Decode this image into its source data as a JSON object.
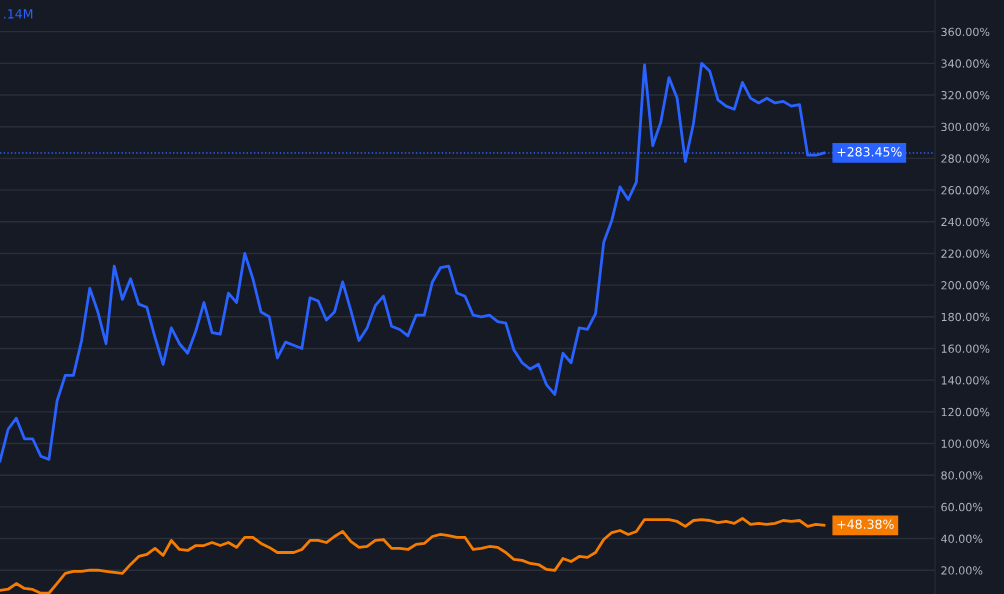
{
  "chart_data": {
    "type": "line",
    "categories": [
      null,
      null,
      null,
      null,
      null,
      null,
      null,
      null,
      null,
      null,
      null,
      null,
      null,
      null,
      null,
      null,
      null,
      null,
      null,
      null,
      null,
      null,
      null,
      null,
      null,
      null,
      null,
      null,
      null,
      null,
      null,
      null,
      null,
      null,
      null,
      null,
      null,
      null,
      null,
      null,
      null,
      null,
      null,
      null,
      null,
      null,
      null,
      null,
      null,
      null,
      null,
      null,
      null,
      null,
      null,
      null,
      null,
      null,
      null,
      null,
      null,
      null,
      null,
      null,
      null,
      null,
      null,
      null,
      null,
      null,
      null,
      null,
      null,
      null,
      null,
      null,
      null,
      null,
      null,
      null,
      null,
      null,
      null,
      null,
      null,
      null,
      null,
      null,
      null,
      null,
      null,
      null,
      null,
      null,
      null,
      null,
      null,
      null,
      null,
      null,
      null,
      null
    ],
    "series": [
      {
        "color": "#2962ff",
        "values": [
          89,
          109,
          116,
          103,
          103,
          92,
          90,
          127,
          143,
          143,
          165,
          198,
          183,
          163,
          212,
          191,
          204,
          188,
          186,
          167,
          150,
          173,
          163,
          157,
          171,
          189,
          170,
          169,
          195,
          189,
          220,
          204,
          183,
          180,
          154,
          164,
          162,
          160,
          192,
          190,
          178,
          183,
          202,
          184,
          165,
          173,
          187,
          193,
          174,
          172,
          168,
          181,
          181,
          202,
          211,
          212,
          195,
          193,
          181,
          180,
          181,
          177,
          176,
          159,
          151,
          147,
          150,
          137,
          131,
          157,
          151,
          173,
          172,
          182,
          227,
          241,
          262,
          254,
          265,
          339,
          288,
          303,
          331,
          318,
          278,
          302,
          340,
          335,
          317,
          313,
          311,
          328,
          318,
          315,
          318,
          315,
          316,
          313,
          314,
          282,
          282,
          283.45
        ],
        "value_labels": [
          null,
          null,
          null,
          null,
          null,
          null,
          null,
          null,
          null,
          null,
          null,
          null,
          null,
          null,
          null,
          null,
          null,
          null,
          null,
          null,
          null,
          null,
          null,
          null,
          null,
          null,
          null,
          null,
          null,
          null,
          null,
          null,
          null,
          null,
          null,
          null,
          null,
          null,
          null,
          null,
          null,
          null,
          null,
          null,
          null,
          null,
          null,
          null,
          null,
          null,
          null,
          null,
          null,
          null,
          null,
          null,
          null,
          null,
          null,
          null,
          null,
          null,
          null,
          null,
          null,
          null,
          null,
          null,
          null,
          null,
          null,
          null,
          null,
          null,
          null,
          null,
          null,
          null,
          null,
          null,
          null,
          null,
          null,
          null,
          null,
          null,
          null,
          null,
          null,
          null,
          null,
          null,
          null,
          null,
          null,
          null,
          null,
          null,
          null,
          null,
          null,
          "+283.45%"
        ]
      },
      {
        "color": "#f57c00",
        "values": [
          7.3,
          8,
          11.6,
          8.5,
          7.9,
          5.5,
          5.5,
          11.7,
          18,
          19.3,
          19.3,
          20,
          20,
          19.3,
          18.6,
          18,
          23.7,
          28.7,
          30,
          33.8,
          29.4,
          38.8,
          33.1,
          32.5,
          35.6,
          35.6,
          37.5,
          35.6,
          37.5,
          34.4,
          40.7,
          40.7,
          36.9,
          34.4,
          31.2,
          31.2,
          31.2,
          33.1,
          38.8,
          38.8,
          37.5,
          41.3,
          44.5,
          38.2,
          34.4,
          35,
          38.8,
          39.4,
          33.8,
          33.8,
          33.1,
          36.3,
          36.9,
          41.3,
          42.6,
          41.9,
          40.7,
          40.7,
          33.1,
          33.8,
          35,
          34.4,
          31.2,
          26.8,
          26.2,
          24.3,
          23.6,
          20.5,
          19.9,
          27.4,
          25.5,
          28.7,
          28.1,
          31.2,
          39.4,
          43.8,
          45.1,
          42.6,
          44.5,
          52,
          52,
          52,
          52,
          50.8,
          47.7,
          51.4,
          52,
          51.4,
          50.1,
          50.8,
          49.6,
          52.7,
          48.9,
          49.6,
          48.9,
          49.6,
          51.4,
          50.8,
          51.4,
          47.7,
          48.9,
          48.38
        ],
        "value_labels": [
          null,
          null,
          null,
          null,
          null,
          null,
          null,
          null,
          null,
          null,
          null,
          null,
          null,
          null,
          null,
          null,
          null,
          null,
          null,
          null,
          null,
          null,
          null,
          null,
          null,
          null,
          null,
          null,
          null,
          null,
          null,
          null,
          null,
          null,
          null,
          null,
          null,
          null,
          null,
          null,
          null,
          null,
          null,
          null,
          null,
          null,
          null,
          null,
          null,
          null,
          null,
          null,
          null,
          null,
          null,
          null,
          null,
          null,
          null,
          null,
          null,
          null,
          null,
          null,
          null,
          null,
          null,
          null,
          null,
          null,
          null,
          null,
          null,
          null,
          null,
          null,
          null,
          null,
          null,
          null,
          null,
          null,
          null,
          null,
          null,
          null,
          null,
          null,
          null,
          null,
          null,
          null,
          null,
          null,
          null,
          null,
          null,
          null,
          null,
          null,
          null,
          "+48.38%"
        ]
      }
    ],
    "ylim": [
      5,
      380
    ],
    "yticks": [
      {
        "value": 20,
        "label": "20.00%"
      },
      {
        "value": 40,
        "label": "40.00%"
      },
      {
        "value": 60,
        "label": "60.00%"
      },
      {
        "value": 80,
        "label": "80.00%"
      },
      {
        "value": 100,
        "label": "100.00%"
      },
      {
        "value": 120,
        "label": "120.00%"
      },
      {
        "value": 140,
        "label": "140.00%"
      },
      {
        "value": 160,
        "label": "160.00%"
      },
      {
        "value": 180,
        "label": "180.00%"
      },
      {
        "value": 200,
        "label": "200.00%"
      },
      {
        "value": 220,
        "label": "220.00%"
      },
      {
        "value": 240,
        "label": "240.00%"
      },
      {
        "value": 260,
        "label": "260.00%"
      },
      {
        "value": 280,
        "label": "280.00%"
      },
      {
        "value": 300,
        "label": "300.00%"
      },
      {
        "value": 320,
        "label": "320.00%"
      },
      {
        "value": 340,
        "label": "340.00%"
      },
      {
        "value": 360,
        "label": "360.00%"
      }
    ],
    "ref_lines": [
      {
        "axis": "y",
        "value": 283.45,
        "color": "#2962ff",
        "line_style": "dotted"
      }
    ],
    "annotations": [
      ".14M"
    ],
    "grid": "y",
    "tick_labels": "y",
    "marker": "none",
    "line_style": "solid"
  }
}
